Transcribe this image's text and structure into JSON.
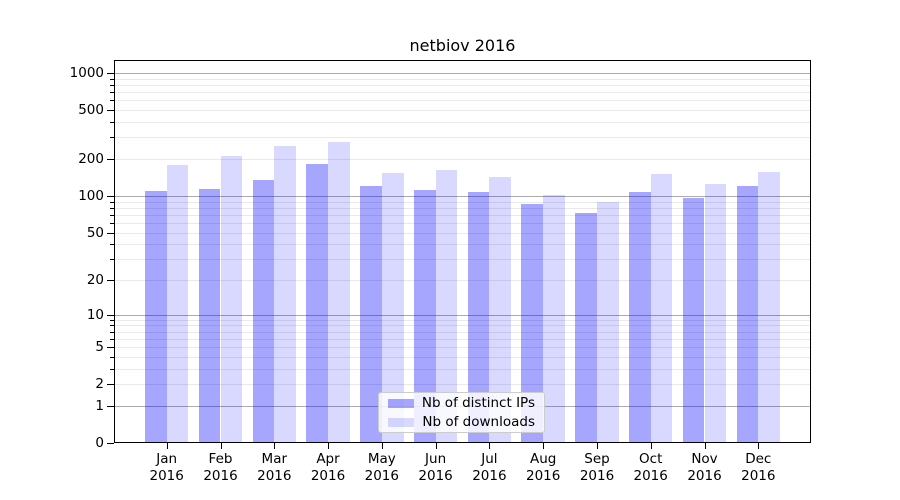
{
  "title": "netbiov 2016",
  "chart_data": {
    "type": "bar",
    "title": "netbiov 2016",
    "subtitle": "",
    "categories": [
      "Jan",
      "Feb",
      "Mar",
      "Apr",
      "May",
      "Jun",
      "Jul",
      "Aug",
      "Sep",
      "Oct",
      "Nov",
      "Dec"
    ],
    "category_year": "2016",
    "series": [
      {
        "name": "Nb of distinct IPs",
        "color_hex": "#A6A6FA",
        "fill": "rgba(0,0,255,0.35)",
        "values": [
          110,
          115,
          135,
          184,
          120,
          112,
          108,
          86,
          73,
          108,
          97,
          120
        ]
      },
      {
        "name": "Nb of downloads",
        "color_hex": "#D9D9FC",
        "fill": "rgba(0,0,255,0.15)",
        "values": [
          180,
          210,
          255,
          275,
          154,
          163,
          143,
          102,
          90,
          151,
          125,
          158
        ]
      }
    ],
    "xlabel": "",
    "ylabel": "",
    "y_scale": "log(1+x) symlog-like",
    "y_ticks": [
      0,
      1,
      2,
      5,
      10,
      20,
      50,
      100,
      200,
      500,
      1000
    ],
    "ylim": [
      0,
      1280
    ],
    "grid": "horizontal major and minor, on",
    "legend_position": "lower center inside plot"
  }
}
